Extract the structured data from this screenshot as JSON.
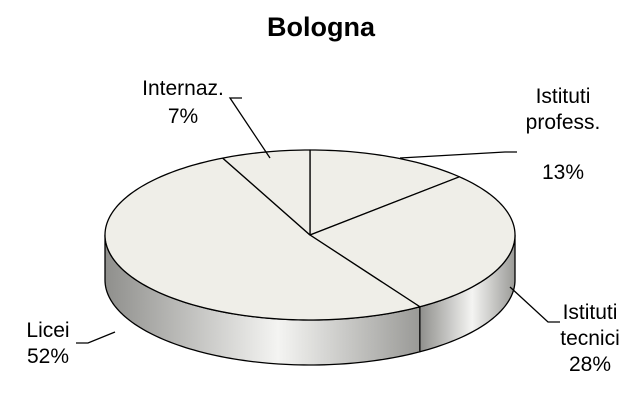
{
  "chart_data": {
    "type": "pie",
    "title": "Bologna",
    "categories": [
      "Istituti profess.",
      "Istituti tecnici",
      "Licei",
      "Internaz."
    ],
    "values": [
      13,
      28,
      52,
      7
    ],
    "value_labels": [
      "13%",
      "28%",
      "52%",
      "7%"
    ],
    "color": "#efeee8"
  }
}
